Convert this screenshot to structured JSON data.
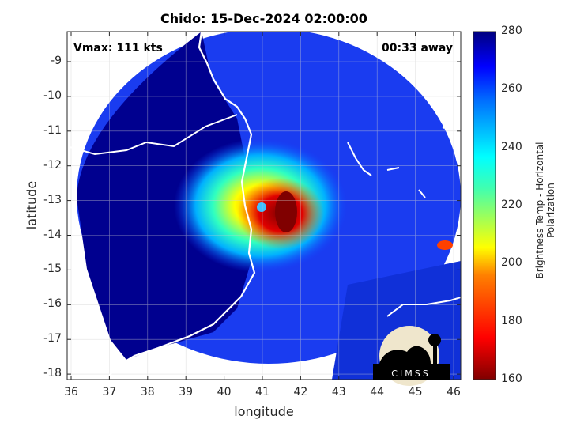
{
  "title": "Chido: 15-Dec-2024 02:00:00",
  "vmax_label": "Vmax: 111 kts",
  "time_away": "00:33 away",
  "xlabel": "longitude",
  "ylabel": "latitude",
  "colorbar_label": "Brightness Temp - Horizontal Polarization",
  "logo_text": "CIMSS",
  "colors": {
    "background_disk": "#00008f",
    "eye_warm": "#800000",
    "coastline": "#ffffff"
  },
  "chart_data": {
    "type": "heatmap",
    "title": "Chido: 15-Dec-2024 02:00:00",
    "xlabel": "longitude",
    "ylabel": "latitude",
    "xlim": [
      35.9,
      46.2
    ],
    "ylim": [
      -18.1,
      -8.1
    ],
    "xticks": [
      "36",
      "37",
      "38",
      "39",
      "40",
      "41",
      "42",
      "43",
      "44",
      "45",
      "46"
    ],
    "yticks": [
      "-9",
      "-10",
      "-11",
      "-12",
      "-13",
      "-14",
      "-15",
      "-16",
      "-17",
      "-18"
    ],
    "colorbar": {
      "label": "Brightness Temp - Horizontal Polarization",
      "range": [
        160,
        280
      ],
      "ticks": [
        "160",
        "180",
        "200",
        "220",
        "240",
        "260",
        "280"
      ],
      "colormap": "jet"
    },
    "grid": true,
    "storm_center": {
      "lon": 41.0,
      "lat": -13.2
    }
  }
}
